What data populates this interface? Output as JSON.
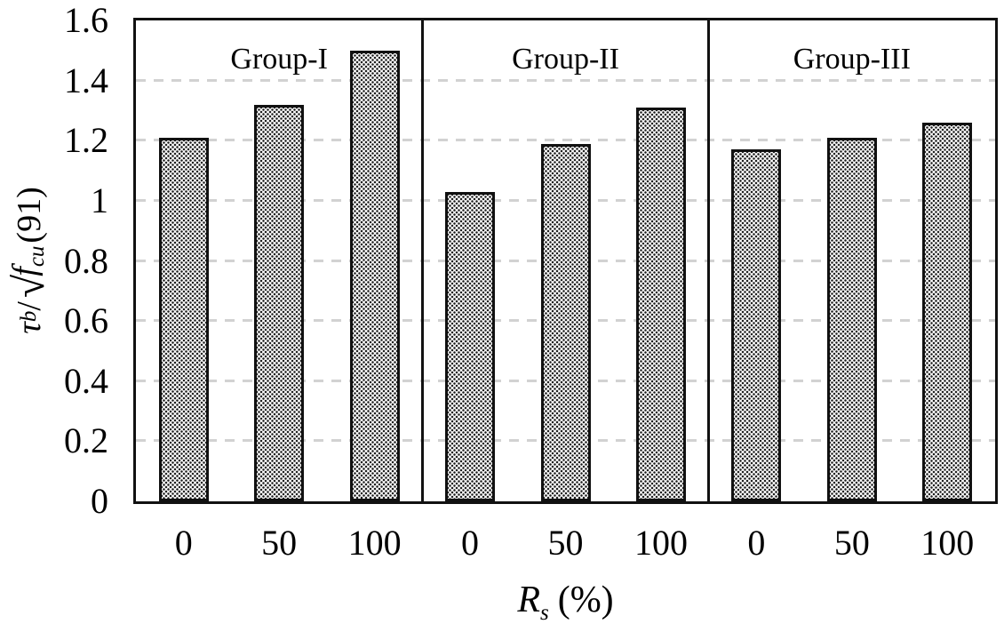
{
  "chart_data": {
    "type": "bar",
    "title": "",
    "ylabel": "τb/√fcu(91)",
    "xlabel": "Rs (%)",
    "ylabel_parts": {
      "tau": "τ",
      "tau_sub": "b",
      "divider": "/",
      "radical": "√",
      "f": "f",
      "f_sub": "cu",
      "suffix": "(91)"
    },
    "xlabel_parts": {
      "symbol": "R",
      "symbol_sub": "s",
      "unit": "(%)"
    },
    "ylim": [
      0,
      1.6
    ],
    "ytick_labels": [
      "0",
      "0.2",
      "0.4",
      "0.6",
      "0.8",
      "1",
      "1.2",
      "1.4",
      "1.6"
    ],
    "ytick_values": [
      0,
      0.2,
      0.4,
      0.6,
      0.8,
      1,
      1.2,
      1.4,
      1.6
    ],
    "gridline_values": [
      0.2,
      0.4,
      0.6,
      0.8,
      1,
      1.2,
      1.4
    ],
    "categories": [
      "0",
      "50",
      "100"
    ],
    "groups": [
      {
        "name": "Group-I",
        "values": [
          1.21,
          1.32,
          1.5
        ]
      },
      {
        "name": "Group-II",
        "values": [
          1.03,
          1.19,
          1.31
        ]
      },
      {
        "name": "Group-III",
        "values": [
          1.17,
          1.21,
          1.26
        ]
      }
    ],
    "legend": "none",
    "grid": "dashed-horizontal",
    "colors": {
      "axis": "#111111",
      "gridline": "#d2d2d2",
      "bar_fill": "#fdfdfd",
      "bar_dot": "#1a1a1a",
      "bar_border": "#111111",
      "text": "#000000"
    }
  }
}
